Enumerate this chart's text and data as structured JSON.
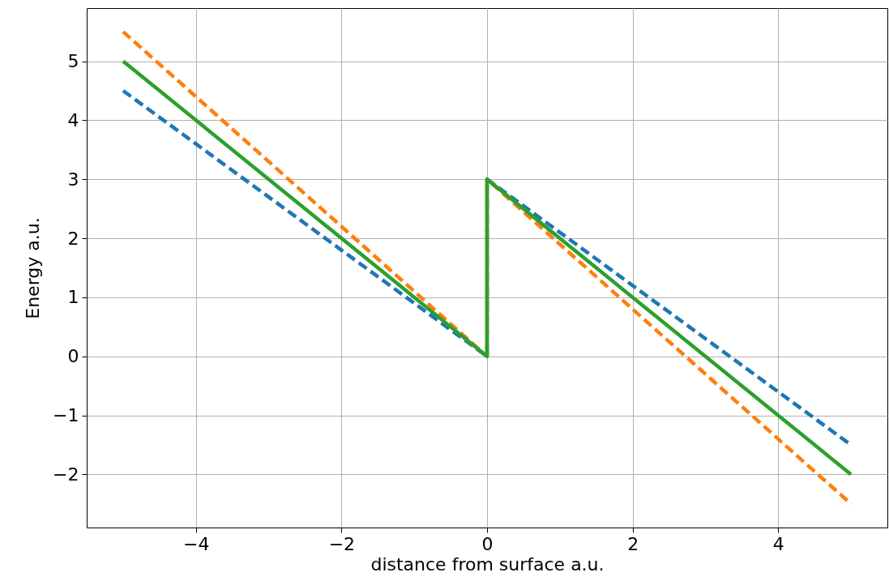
{
  "chart_data": {
    "type": "line",
    "xlabel": "distance from surface a.u.",
    "ylabel": "Energy a.u.",
    "xlim": [
      -5.5,
      5.5
    ],
    "ylim": [
      -2.9,
      5.9
    ],
    "xticks": [
      {
        "value": -4,
        "label": "−4"
      },
      {
        "value": -2,
        "label": "−2"
      },
      0,
      2,
      4
    ],
    "yticks": [
      {
        "value": -2,
        "label": "−2"
      },
      {
        "value": -1,
        "label": "−1"
      },
      0,
      1,
      2,
      3,
      4,
      5
    ],
    "grid": true,
    "series": [
      {
        "color": "#1f77b4",
        "line_style": "dashed",
        "x": [
          -5,
          0,
          0,
          5
        ],
        "values": [
          4.5,
          0,
          3,
          -1.5
        ]
      },
      {
        "color": "#ff7f0e",
        "line_style": "dashed",
        "x": [
          -5,
          0,
          0,
          5
        ],
        "values": [
          5.5,
          0,
          3,
          -2.5
        ]
      },
      {
        "color": "#2ca02c",
        "line_style": "solid",
        "x": [
          -5,
          0,
          0,
          5
        ],
        "values": [
          5,
          0,
          3,
          -2
        ]
      }
    ]
  }
}
